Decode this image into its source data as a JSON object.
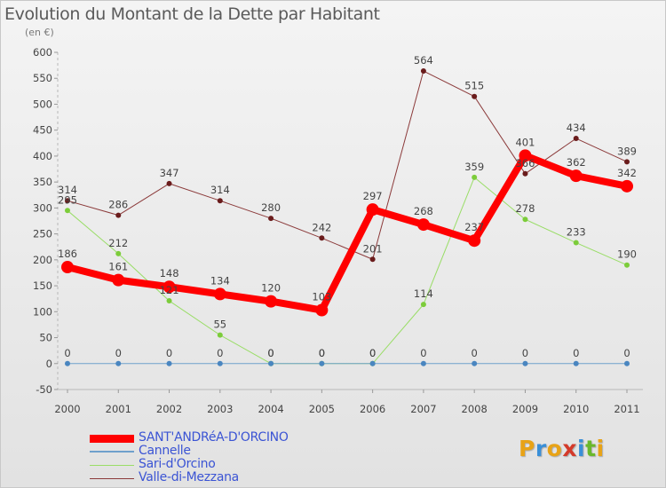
{
  "header": {
    "title": "Evolution du Montant de la Dette par Habitant",
    "subtitle": "(en €)"
  },
  "logo": {
    "letters": [
      "P",
      "r",
      "o",
      "x",
      "i",
      "t",
      "i"
    ],
    "colors": [
      "#e8a317",
      "#3a8fd8",
      "#e8a317",
      "#d43a2a",
      "#3a8fd8",
      "#6ab82b",
      "#e8a317"
    ]
  },
  "chart_data": {
    "type": "line",
    "title": "Evolution du Montant de la Dette par Habitant",
    "ylabel": "(en €)",
    "xlabel": "",
    "categories": [
      "2000",
      "2001",
      "2002",
      "2003",
      "2004",
      "2005",
      "2006",
      "2007",
      "2008",
      "2009",
      "2010",
      "2011"
    ],
    "ylim": [
      -50,
      600
    ],
    "yticks": [
      -50,
      0,
      50,
      100,
      150,
      200,
      250,
      300,
      350,
      400,
      450,
      500,
      550,
      600
    ],
    "grid": false,
    "legend_position": "bottom-left",
    "series": [
      {
        "name": "SANT'ANDRéA-D'ORCINO",
        "color": "#ff0000",
        "values": [
          186,
          161,
          148,
          134,
          120,
          103,
          297,
          268,
          237,
          401,
          362,
          342
        ]
      },
      {
        "name": "Cannelle",
        "color": "#6fa0cc",
        "values": [
          0,
          0,
          0,
          0,
          0,
          0,
          0,
          0,
          0,
          0,
          0,
          0
        ]
      },
      {
        "name": "Sari-d'Orcino",
        "color": "#99dd66",
        "values": [
          295,
          212,
          121,
          55,
          0,
          0,
          0,
          114,
          359,
          278,
          233,
          190
        ]
      },
      {
        "name": "Valle-di-Mezzana",
        "color": "#8b3a3a",
        "values": [
          314,
          286,
          347,
          314,
          280,
          242,
          201,
          564,
          515,
          366,
          434,
          389
        ]
      }
    ]
  }
}
